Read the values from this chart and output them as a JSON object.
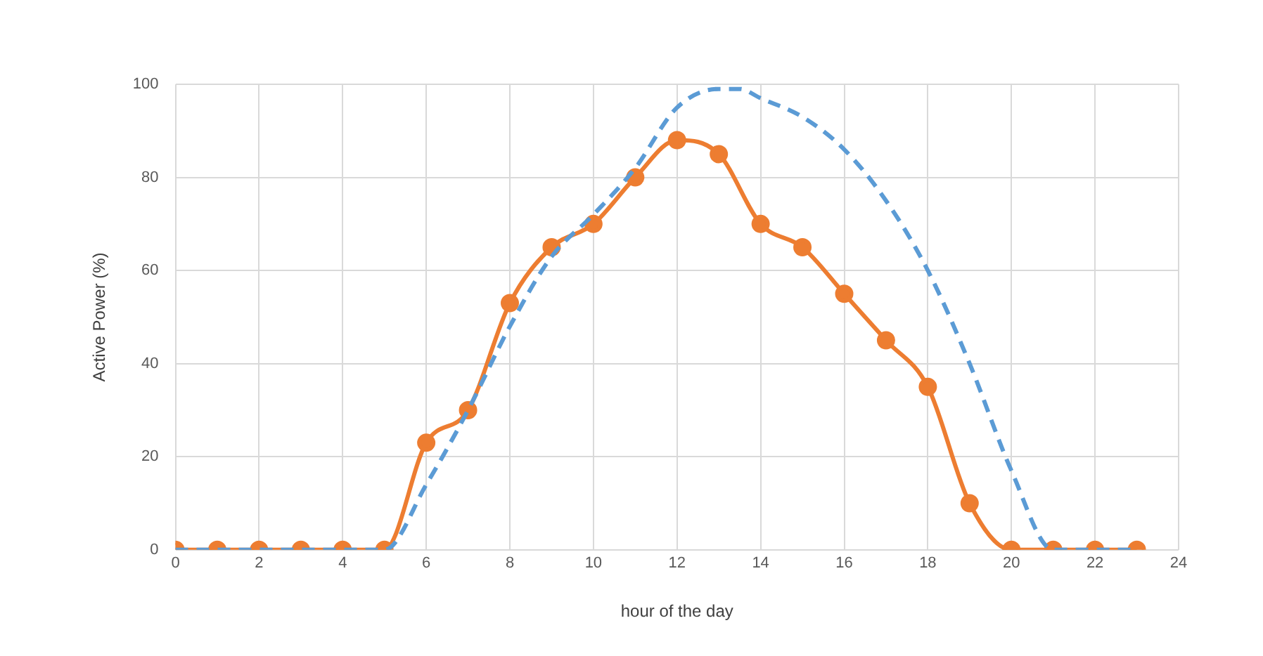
{
  "chart_data": {
    "type": "line",
    "xlabel": "hour of the day",
    "ylabel": "Active Power (%)",
    "xlim": [
      0,
      24
    ],
    "xticks": [
      0,
      2,
      4,
      6,
      8,
      10,
      12,
      14,
      16,
      18,
      20,
      22,
      24
    ],
    "ylim": [
      0,
      100
    ],
    "yticks": [
      0,
      20,
      40,
      60,
      80,
      100
    ],
    "grid": true,
    "legend": false,
    "series": [
      {
        "color": "#5b9bd5",
        "line_style": "dashed",
        "marker": "none",
        "x": [
          0,
          1,
          2,
          3,
          4,
          5,
          6,
          7,
          8,
          9,
          10,
          11,
          12,
          13,
          13.5,
          14,
          15,
          16,
          17,
          18,
          19,
          20,
          21,
          22,
          23
        ],
        "values": [
          0,
          0,
          0,
          0,
          0,
          0,
          14,
          30,
          48,
          63,
          72,
          82,
          95,
          99,
          99,
          97,
          93,
          86,
          75,
          60,
          40,
          17,
          0,
          0,
          0
        ]
      },
      {
        "color": "#ed7d31",
        "line_style": "solid",
        "marker": "circle",
        "x": [
          0,
          1,
          2,
          3,
          4,
          5,
          6,
          7,
          8,
          9,
          10,
          11,
          12,
          13,
          14,
          15,
          16,
          17,
          18,
          19,
          20,
          21,
          22,
          23
        ],
        "values": [
          0,
          0,
          0,
          0,
          0,
          0,
          23,
          30,
          53,
          65,
          70,
          80,
          88,
          85,
          70,
          65,
          55,
          45,
          35,
          10,
          0,
          0,
          0,
          0
        ]
      }
    ]
  }
}
